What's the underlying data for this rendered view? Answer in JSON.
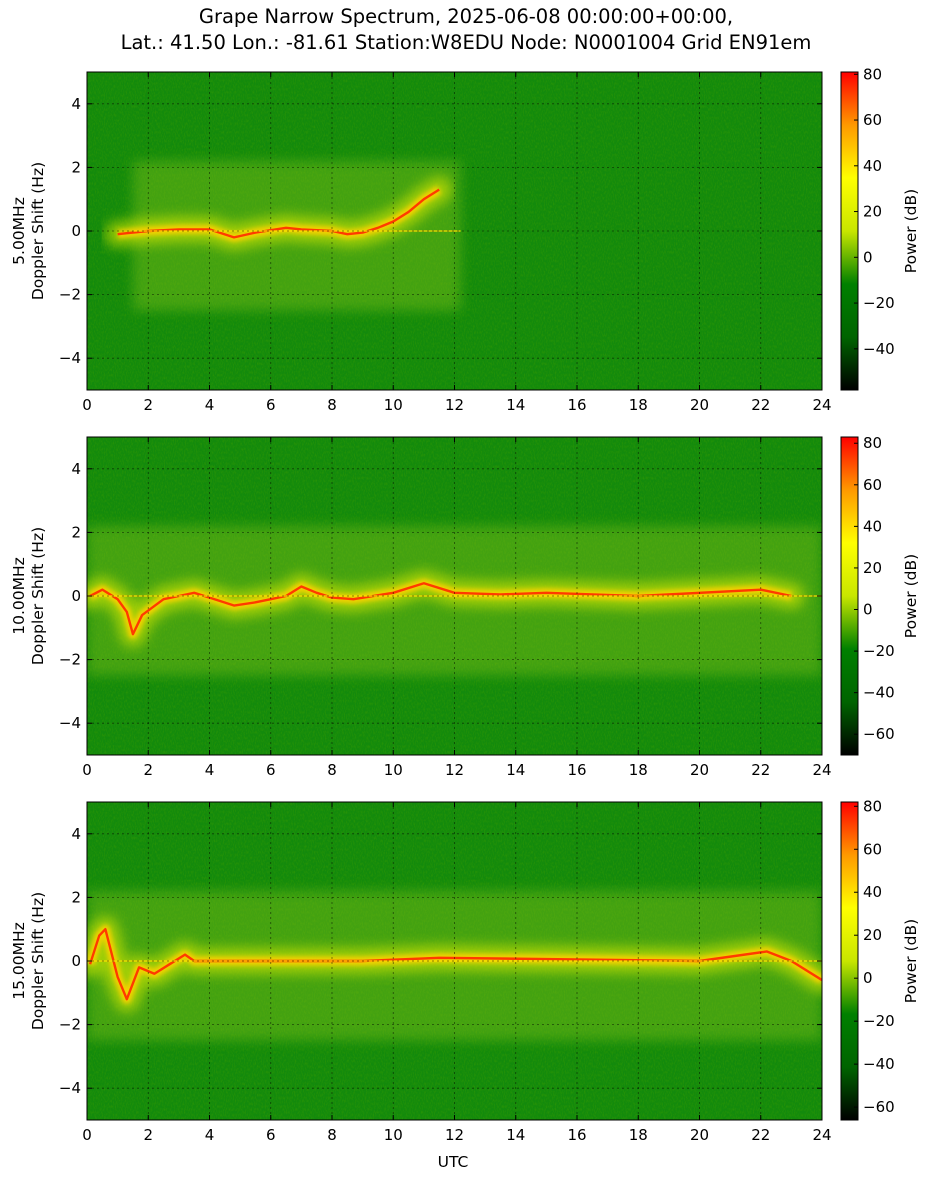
{
  "chart_data": {
    "type": "heatmap",
    "title_lines": [
      "Grape Narrow Spectrum, 2025-06-08 00:00:00+00:00,",
      "Lat.: 41.50 Lon.: -81.61 Station:W8EDU Node: N0001004 Grid EN91em"
    ],
    "xlabel": "UTC",
    "x_ticks": [
      0,
      2,
      4,
      6,
      8,
      10,
      12,
      14,
      16,
      18,
      20,
      22,
      24
    ],
    "xlim": [
      0,
      24
    ],
    "grid": true,
    "colorbar_label": "Power (dB)",
    "colorscale": [
      "#000000",
      "#006400",
      "#008000",
      "#c8e600",
      "#ffff00",
      "#ff9900",
      "#ff0000"
    ],
    "panels": [
      {
        "ylabel_lines": [
          "5.00MHz",
          "Doppler Shift (Hz)"
        ],
        "ylim": [
          -5,
          5
        ],
        "y_ticks": [
          -4,
          -2,
          0,
          2,
          4
        ],
        "colorbar_range": [
          -58,
          81
        ],
        "colorbar_ticks": [
          -40,
          -20,
          0,
          20,
          40,
          60,
          80
        ],
        "doppler_trace": [
          [
            1.0,
            -0.1
          ],
          [
            2.0,
            0.0
          ],
          [
            3.0,
            0.05
          ],
          [
            4.0,
            0.05
          ],
          [
            4.8,
            -0.2
          ],
          [
            5.5,
            -0.05
          ],
          [
            6.5,
            0.1
          ],
          [
            7.0,
            0.05
          ],
          [
            8.0,
            0.0
          ],
          [
            8.5,
            -0.1
          ],
          [
            9.0,
            -0.05
          ],
          [
            9.5,
            0.1
          ],
          [
            10.0,
            0.3
          ],
          [
            10.5,
            0.6
          ],
          [
            11.0,
            1.0
          ],
          [
            11.5,
            1.3
          ]
        ],
        "active_span_utc": [
          1.5,
          12.2
        ]
      },
      {
        "ylabel_lines": [
          "10.00MHz",
          "Doppler Shift (Hz)"
        ],
        "ylim": [
          -5,
          5
        ],
        "y_ticks": [
          -4,
          -2,
          0,
          2,
          4
        ],
        "colorbar_range": [
          -70,
          83
        ],
        "colorbar_ticks": [
          -60,
          -40,
          -20,
          0,
          20,
          40,
          60,
          80
        ],
        "doppler_trace": [
          [
            0.1,
            0.0
          ],
          [
            0.5,
            0.2
          ],
          [
            1.0,
            -0.1
          ],
          [
            1.3,
            -0.5
          ],
          [
            1.5,
            -1.2
          ],
          [
            1.8,
            -0.6
          ],
          [
            2.5,
            -0.1
          ],
          [
            3.0,
            0.0
          ],
          [
            3.5,
            0.1
          ],
          [
            4.0,
            -0.05
          ],
          [
            4.8,
            -0.3
          ],
          [
            5.5,
            -0.2
          ],
          [
            6.0,
            -0.1
          ],
          [
            6.5,
            0.0
          ],
          [
            7.0,
            0.3
          ],
          [
            7.5,
            0.1
          ],
          [
            8.0,
            -0.05
          ],
          [
            8.7,
            -0.1
          ],
          [
            10.0,
            0.1
          ],
          [
            11.0,
            0.4
          ],
          [
            12.0,
            0.1
          ],
          [
            13.5,
            0.05
          ],
          [
            15.0,
            0.1
          ],
          [
            18.0,
            0.0
          ],
          [
            22.0,
            0.2
          ],
          [
            23.0,
            0.0
          ]
        ],
        "active_span_utc": [
          0.0,
          24.0
        ]
      },
      {
        "ylabel_lines": [
          "15.00MHz",
          "Doppler Shift (Hz)"
        ],
        "ylim": [
          -5,
          5
        ],
        "y_ticks": [
          -4,
          -2,
          0,
          2,
          4
        ],
        "colorbar_range": [
          -66,
          82
        ],
        "colorbar_ticks": [
          -60,
          -40,
          -20,
          0,
          20,
          40,
          60,
          80
        ],
        "doppler_trace": [
          [
            0.1,
            -0.1
          ],
          [
            0.4,
            0.8
          ],
          [
            0.6,
            1.0
          ],
          [
            1.0,
            -0.5
          ],
          [
            1.3,
            -1.2
          ],
          [
            1.7,
            -0.2
          ],
          [
            2.2,
            -0.4
          ],
          [
            2.7,
            -0.1
          ],
          [
            3.2,
            0.2
          ],
          [
            3.5,
            0.0
          ],
          [
            5.0,
            0.0
          ],
          [
            9.0,
            0.0
          ],
          [
            11.5,
            0.1
          ],
          [
            16.0,
            0.05
          ],
          [
            20.0,
            0.0
          ],
          [
            22.2,
            0.3
          ],
          [
            23.0,
            0.0
          ],
          [
            24.0,
            -0.6
          ]
        ],
        "active_span_utc": [
          0.0,
          24.0
        ]
      }
    ]
  }
}
